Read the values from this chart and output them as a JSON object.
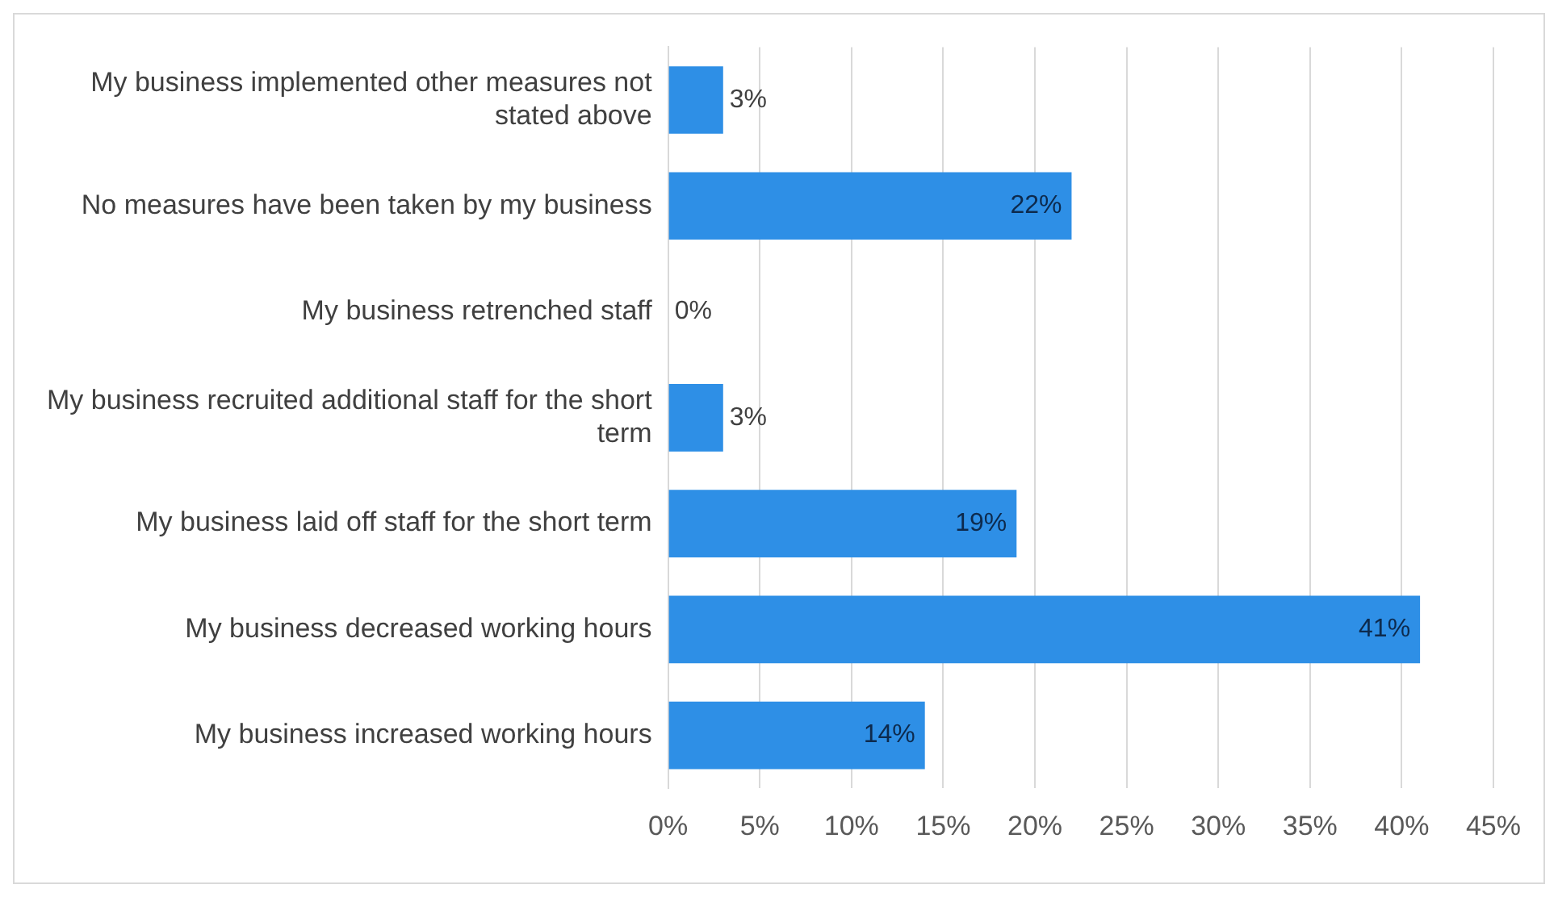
{
  "chart_data": {
    "type": "bar",
    "orientation": "horizontal",
    "categories": [
      "My business implemented other measures not stated above",
      "No measures have been taken by my business",
      "My business retrenched staff",
      "My business recruited additional staff for the short term",
      "My business laid off staff for the short term",
      "My business decreased working hours",
      "My business increased working hours"
    ],
    "values": [
      3,
      22,
      0,
      3,
      19,
      41,
      14
    ],
    "value_labels": [
      "3%",
      "22%",
      "0%",
      "3%",
      "19%",
      "41%",
      "14%"
    ],
    "color": "#2e8fe6",
    "xlim": [
      0,
      45
    ],
    "xticks": [
      {
        "value": 0,
        "label": "0%"
      },
      {
        "value": 5,
        "label": "5%"
      },
      {
        "value": 10,
        "label": "10%"
      },
      {
        "value": 15,
        "label": "15%"
      },
      {
        "value": 20,
        "label": "20%"
      },
      {
        "value": 25,
        "label": "25%"
      },
      {
        "value": 30,
        "label": "30%"
      },
      {
        "value": 35,
        "label": "35%"
      },
      {
        "value": 40,
        "label": "40%"
      },
      {
        "value": 45,
        "label": "45%"
      }
    ],
    "grid": "x",
    "legend": false
  }
}
